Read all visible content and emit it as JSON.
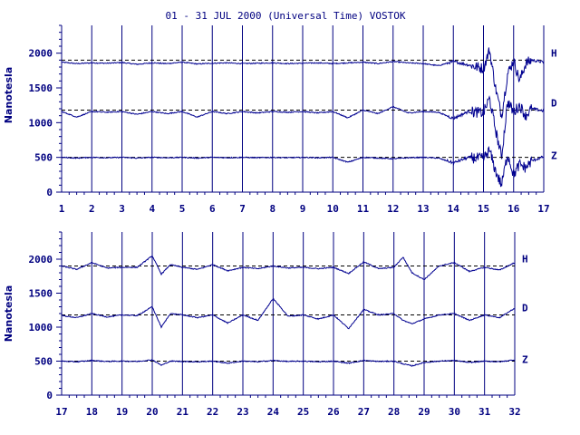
{
  "chart_data": [
    {
      "type": "line",
      "title": "01 - 31 JUL 2000 (Universal Time) VOSTOK",
      "ylabel": "Nanotesla",
      "xlim": [
        1,
        17
      ],
      "ylim": [
        0,
        2400
      ],
      "x_ticks": [
        1,
        2,
        3,
        4,
        5,
        6,
        7,
        8,
        9,
        10,
        11,
        12,
        13,
        14,
        15,
        16,
        17
      ],
      "y_ticks": [
        0,
        500,
        1000,
        1500,
        2000
      ],
      "grid": "vertical-day-lines",
      "series": [
        {
          "name": "H",
          "baseline": 1900,
          "x": [
            1,
            1.5,
            2,
            2.5,
            3,
            3.5,
            4,
            4.5,
            5,
            5.5,
            6,
            6.5,
            7,
            7.5,
            8,
            8.5,
            9,
            9.5,
            10,
            10.5,
            11,
            11.5,
            12,
            12.5,
            13,
            13.5,
            14,
            14.5,
            15,
            15.2,
            15.4,
            15.6,
            15.8,
            16,
            16.2,
            16.4,
            16.6,
            17
          ],
          "y": [
            1870,
            1850,
            1860,
            1855,
            1865,
            1840,
            1860,
            1850,
            1870,
            1845,
            1855,
            1860,
            1850,
            1855,
            1860,
            1850,
            1855,
            1860,
            1850,
            1860,
            1870,
            1850,
            1880,
            1860,
            1850,
            1820,
            1880,
            1830,
            1780,
            2050,
            1500,
            1100,
            1700,
            1900,
            1600,
            1850,
            1900,
            1870
          ]
        },
        {
          "name": "D",
          "baseline": 1180,
          "x": [
            1,
            1.5,
            2,
            2.5,
            3,
            3.5,
            4,
            4.5,
            5,
            5.5,
            6,
            6.5,
            7,
            7.5,
            8,
            8.5,
            9,
            9.5,
            10,
            10.5,
            11,
            11.5,
            12,
            12.5,
            13,
            13.5,
            14,
            14.5,
            15,
            15.2,
            15.4,
            15.6,
            15.8,
            16,
            16.2,
            16.4,
            16.6,
            17
          ],
          "y": [
            1160,
            1080,
            1160,
            1150,
            1160,
            1120,
            1160,
            1130,
            1160,
            1080,
            1160,
            1130,
            1160,
            1140,
            1160,
            1150,
            1160,
            1140,
            1160,
            1070,
            1180,
            1130,
            1230,
            1140,
            1160,
            1150,
            1060,
            1160,
            1140,
            1350,
            900,
            500,
            1300,
            1150,
            1250,
            1100,
            1200,
            1170
          ]
        },
        {
          "name": "Z",
          "baseline": 500,
          "x": [
            1,
            1.5,
            2,
            2.5,
            3,
            3.5,
            4,
            4.5,
            5,
            5.5,
            6,
            6.5,
            7,
            7.5,
            8,
            8.5,
            9,
            9.5,
            10,
            10.5,
            11,
            11.5,
            12,
            12.5,
            13,
            13.5,
            14,
            14.5,
            15,
            15.2,
            15.4,
            15.6,
            15.8,
            16,
            16.2,
            16.4,
            16.6,
            17
          ],
          "y": [
            500,
            490,
            500,
            495,
            500,
            490,
            500,
            495,
            500,
            490,
            500,
            495,
            500,
            495,
            500,
            495,
            500,
            495,
            500,
            430,
            500,
            490,
            480,
            495,
            500,
            490,
            420,
            500,
            480,
            600,
            300,
            100,
            550,
            250,
            400,
            350,
            450,
            510
          ]
        }
      ]
    },
    {
      "type": "line",
      "ylabel": "Nanotesla",
      "xlim": [
        17,
        32
      ],
      "ylim": [
        0,
        2400
      ],
      "x_ticks": [
        17,
        18,
        19,
        20,
        21,
        22,
        23,
        24,
        25,
        26,
        27,
        28,
        29,
        30,
        31,
        32
      ],
      "y_ticks": [
        0,
        500,
        1000,
        1500,
        2000
      ],
      "grid": "vertical-day-lines",
      "series": [
        {
          "name": "H",
          "baseline": 1900,
          "x": [
            17,
            17.5,
            18,
            18.5,
            19,
            19.5,
            20,
            20.3,
            20.6,
            21,
            21.5,
            22,
            22.5,
            23,
            23.5,
            24,
            24.5,
            25,
            25.5,
            26,
            26.5,
            27,
            27.5,
            28,
            28.3,
            28.6,
            29,
            29.5,
            30,
            30.5,
            31,
            31.5,
            32
          ],
          "y": [
            1900,
            1850,
            1950,
            1870,
            1880,
            1880,
            2050,
            1780,
            1920,
            1880,
            1850,
            1920,
            1830,
            1880,
            1860,
            1900,
            1870,
            1880,
            1860,
            1880,
            1790,
            1960,
            1860,
            1880,
            2030,
            1800,
            1700,
            1900,
            1950,
            1820,
            1880,
            1840,
            1950
          ]
        },
        {
          "name": "D",
          "baseline": 1180,
          "x": [
            17,
            17.5,
            18,
            18.5,
            19,
            19.5,
            20,
            20.3,
            20.6,
            21,
            21.5,
            22,
            22.5,
            23,
            23.5,
            24,
            24.5,
            25,
            25.5,
            26,
            26.5,
            27,
            27.5,
            28,
            28.3,
            28.6,
            29,
            29.5,
            30,
            30.5,
            31,
            31.5,
            32
          ],
          "y": [
            1170,
            1140,
            1200,
            1150,
            1180,
            1170,
            1300,
            1000,
            1200,
            1180,
            1140,
            1180,
            1060,
            1180,
            1100,
            1420,
            1160,
            1180,
            1120,
            1180,
            980,
            1260,
            1180,
            1200,
            1100,
            1050,
            1120,
            1180,
            1200,
            1100,
            1180,
            1140,
            1280
          ]
        },
        {
          "name": "Z",
          "baseline": 500,
          "x": [
            17,
            17.5,
            18,
            18.5,
            19,
            19.5,
            20,
            20.3,
            20.6,
            21,
            21.5,
            22,
            22.5,
            23,
            23.5,
            24,
            24.5,
            25,
            25.5,
            26,
            26.5,
            27,
            27.5,
            28,
            28.3,
            28.6,
            29,
            29.5,
            30,
            30.5,
            31,
            31.5,
            32
          ],
          "y": [
            500,
            490,
            510,
            495,
            500,
            495,
            520,
            440,
            500,
            495,
            490,
            500,
            470,
            500,
            490,
            510,
            495,
            500,
            490,
            500,
            470,
            510,
            495,
            500,
            460,
            430,
            480,
            500,
            510,
            480,
            500,
            490,
            520
          ]
        }
      ]
    }
  ],
  "colors": {
    "line": "#000090",
    "text": "#000080",
    "frame": "#000080"
  }
}
